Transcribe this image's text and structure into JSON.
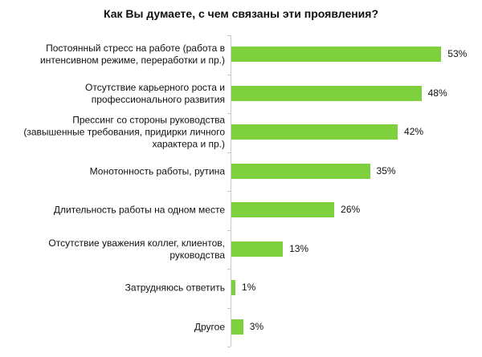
{
  "chart_data": {
    "type": "bar",
    "orientation": "horizontal",
    "title": "Как Вы думаете, с чем связаны эти проявления?",
    "categories": [
      "Постоянный стресс на работе (работа в интенсивном режиме, переработки и пр.)",
      "Отсутствие карьерного роста и профессионального развития",
      "Прессинг со стороны руководства (завышенные требования, придирки  личного характера и пр.)",
      "Монотонность работы, рутина",
      "Длительность работы на одном месте",
      "Отсутствие уважения коллег, клиентов, руководства",
      "Затрудняюсь ответить",
      "Другое"
    ],
    "values": [
      53,
      48,
      42,
      35,
      26,
      13,
      1,
      3
    ],
    "value_labels": [
      "53%",
      "48%",
      "42%",
      "35%",
      "26%",
      "13%",
      "1%",
      "3%"
    ],
    "xlabel": "",
    "ylabel": "",
    "xlim": [
      0,
      55
    ],
    "grid": false,
    "legend": null,
    "bar_color": "#7ed13c"
  },
  "labels": [
    [
      "Постоянный стресс на работе (работа в",
      "интенсивном режиме, переработки и пр.)"
    ],
    [
      "Отсутствие карьерного роста и",
      "профессионального развития"
    ],
    [
      "Прессинг со стороны руководства",
      "(завышенные требования, придирки  личного",
      "характера и пр.)"
    ],
    [
      "Монотонность работы, рутина"
    ],
    [
      "Длительность работы на одном месте"
    ],
    [
      "Отсутствие уважения коллег, клиентов,",
      "руководства"
    ],
    [
      "Затрудняюсь ответить"
    ],
    [
      "Другое"
    ]
  ]
}
